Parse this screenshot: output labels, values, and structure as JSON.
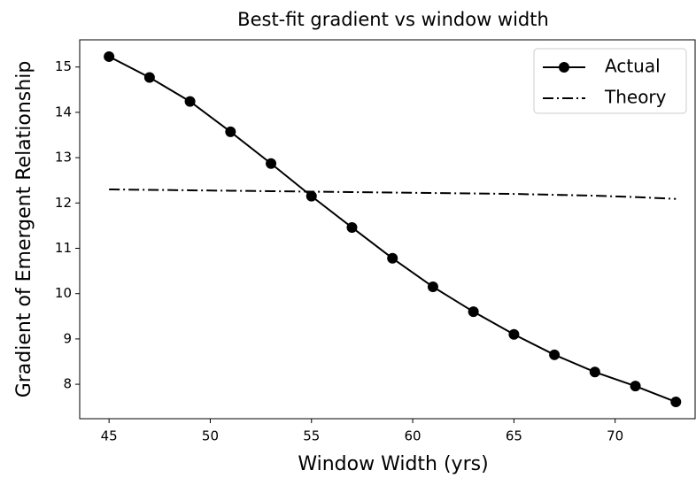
{
  "chart_data": {
    "type": "line",
    "title": "Best-fit gradient vs window width",
    "x_label": "Window Width (yrs)",
    "y_label": "Gradient of Emergent Relationship",
    "x": [
      45,
      47,
      49,
      51,
      53,
      55,
      57,
      59,
      61,
      63,
      65,
      67,
      69,
      71,
      73
    ],
    "series": [
      {
        "name": "Actual",
        "color": "#000000",
        "style": "solid",
        "marker": "circle",
        "values": [
          15.23,
          14.77,
          14.24,
          13.57,
          12.87,
          12.15,
          11.46,
          10.78,
          10.15,
          9.6,
          9.1,
          8.65,
          8.27,
          7.96,
          7.61
        ]
      },
      {
        "name": "Theory",
        "color": "#000000",
        "style": "dashdot",
        "marker": "none",
        "values": [
          12.3,
          12.29,
          12.28,
          12.27,
          12.26,
          12.25,
          12.24,
          12.23,
          12.22,
          12.21,
          12.2,
          12.18,
          12.16,
          12.13,
          12.09
        ]
      }
    ],
    "xlim": [
      43.55,
      73.95
    ],
    "ylim": [
      7.24,
      15.6
    ],
    "xticks": [
      45,
      50,
      55,
      60,
      65,
      70
    ],
    "yticks": [
      8,
      9,
      10,
      11,
      12,
      13,
      14,
      15
    ],
    "legend": "upper right",
    "grid": false
  }
}
